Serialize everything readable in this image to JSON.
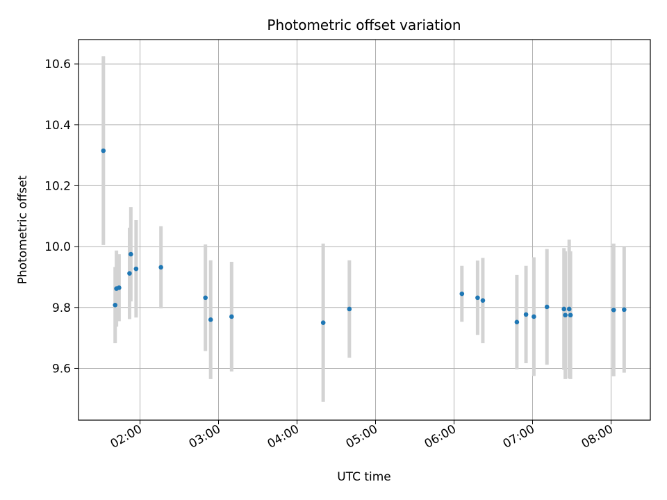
{
  "chart_data": {
    "type": "scatter",
    "title": "Photometric offset variation",
    "xlabel": "UTC time",
    "ylabel": "Photometric offset",
    "x_ticks": [
      "02:00",
      "03:00",
      "04:00",
      "05:00",
      "06:00",
      "07:00",
      "08:00"
    ],
    "y_ticks": [
      "9.6",
      "9.8",
      "10.0",
      "10.2",
      "10.4",
      "10.6"
    ],
    "xlim": [
      "01:13",
      "08:30"
    ],
    "ylim": [
      9.43,
      10.68
    ],
    "grid": true,
    "point_color": "#1f77b4",
    "errorbar_color": "#d3d3d3",
    "points": [
      {
        "x": "01:32",
        "y": 10.315,
        "err": 0.31
      },
      {
        "x": "01:41",
        "y": 9.808,
        "err": 0.125
      },
      {
        "x": "01:42",
        "y": 9.862,
        "err": 0.125
      },
      {
        "x": "01:44",
        "y": 9.865,
        "err": 0.11
      },
      {
        "x": "01:52",
        "y": 9.912,
        "err": 0.15
      },
      {
        "x": "01:53",
        "y": 9.975,
        "err": 0.155
      },
      {
        "x": "01:57",
        "y": 9.927,
        "err": 0.16
      },
      {
        "x": "02:16",
        "y": 9.932,
        "err": 0.135
      },
      {
        "x": "02:50",
        "y": 9.832,
        "err": 0.175
      },
      {
        "x": "02:54",
        "y": 9.76,
        "err": 0.195
      },
      {
        "x": "03:10",
        "y": 9.77,
        "err": 0.18
      },
      {
        "x": "04:20",
        "y": 9.75,
        "err": 0.26
      },
      {
        "x": "04:40",
        "y": 9.795,
        "err": 0.16
      },
      {
        "x": "06:06",
        "y": 9.845,
        "err": 0.092
      },
      {
        "x": "06:18",
        "y": 9.832,
        "err": 0.122
      },
      {
        "x": "06:22",
        "y": 9.823,
        "err": 0.14
      },
      {
        "x": "06:48",
        "y": 9.752,
        "err": 0.155
      },
      {
        "x": "06:55",
        "y": 9.777,
        "err": 0.16
      },
      {
        "x": "07:01",
        "y": 9.77,
        "err": 0.195
      },
      {
        "x": "07:11",
        "y": 9.802,
        "err": 0.19
      },
      {
        "x": "07:24",
        "y": 9.795,
        "err": 0.2
      },
      {
        "x": "07:25",
        "y": 9.775,
        "err": 0.21
      },
      {
        "x": "07:28",
        "y": 9.795,
        "err": 0.228
      },
      {
        "x": "07:29",
        "y": 9.775,
        "err": 0.21
      },
      {
        "x": "08:02",
        "y": 9.792,
        "err": 0.218
      },
      {
        "x": "08:10",
        "y": 9.793,
        "err": 0.207
      }
    ]
  }
}
